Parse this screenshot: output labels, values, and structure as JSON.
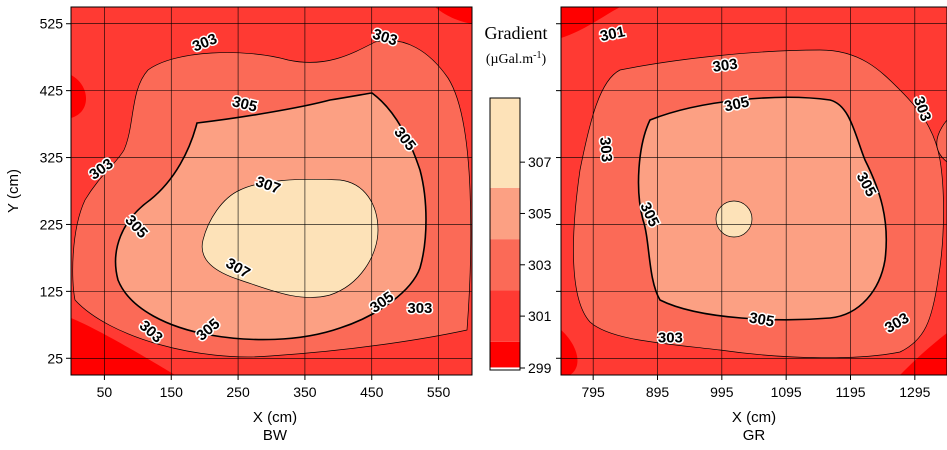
{
  "chart_data": [
    {
      "type": "contour",
      "panel": "BW",
      "title": "BW",
      "xlabel": "X (cm)",
      "ylabel": "Y (cm)",
      "xlim": [
        0,
        600
      ],
      "ylim": [
        0,
        550
      ],
      "x_ticks": [
        50,
        150,
        250,
        350,
        450,
        550
      ],
      "y_ticks": [
        25,
        125,
        225,
        325,
        425,
        525
      ],
      "grid": true,
      "contour_labels": [
        {
          "label": "303",
          "x": 200,
          "y": 497
        },
        {
          "label": "303",
          "x": 470,
          "y": 505
        },
        {
          "label": "303",
          "x": 45,
          "y": 308
        },
        {
          "label": "303",
          "x": 120,
          "y": 65
        },
        {
          "label": "303",
          "x": 522,
          "y": 100
        },
        {
          "label": "305",
          "x": 260,
          "y": 405
        },
        {
          "label": "305",
          "x": 500,
          "y": 353
        },
        {
          "label": "305",
          "x": 98,
          "y": 222
        },
        {
          "label": "305",
          "x": 205,
          "y": 68
        },
        {
          "label": "305",
          "x": 465,
          "y": 109
        },
        {
          "label": "307",
          "x": 295,
          "y": 284
        },
        {
          "label": "307",
          "x": 250,
          "y": 160
        }
      ]
    },
    {
      "type": "contour",
      "panel": "GR",
      "title": "GR",
      "xlabel": "X (cm)",
      "ylabel": "",
      "xlim": [
        745,
        1345
      ],
      "ylim": [
        0,
        550
      ],
      "x_ticks": [
        795,
        895,
        995,
        1095,
        1195,
        1295
      ],
      "y_ticks": [
        25,
        125,
        225,
        325,
        425,
        525
      ],
      "grid": true,
      "contour_labels": [
        {
          "label": "301",
          "x": 825,
          "y": 510
        },
        {
          "label": "303",
          "x": 1000,
          "y": 463
        },
        {
          "label": "303",
          "x": 1307,
          "y": 398
        },
        {
          "label": "303",
          "x": 815,
          "y": 337
        },
        {
          "label": "303",
          "x": 915,
          "y": 56
        },
        {
          "label": "303",
          "x": 1267,
          "y": 78
        },
        {
          "label": "305",
          "x": 1018,
          "y": 405
        },
        {
          "label": "305",
          "x": 1220,
          "y": 285
        },
        {
          "label": "305",
          "x": 883,
          "y": 240
        },
        {
          "label": "305",
          "x": 1057,
          "y": 83
        }
      ]
    }
  ],
  "legend": {
    "title": "Gradient",
    "unit": "(µGal.m",
    "unit_sup": "-1",
    "unit_close": ")",
    "levels": [
      299,
      301,
      303,
      305,
      307
    ],
    "tick_labels": [
      "299",
      "301",
      "303",
      "305",
      "307"
    ],
    "colors": [
      "#ff0000",
      "#ff3a33",
      "#fb6a57",
      "#fca083",
      "#fde2b8"
    ]
  },
  "colors": {
    "c299": "#ff0000",
    "c301": "#ff3a33",
    "c303": "#fb6a57",
    "c305": "#fca083",
    "c307": "#fde2b8"
  }
}
